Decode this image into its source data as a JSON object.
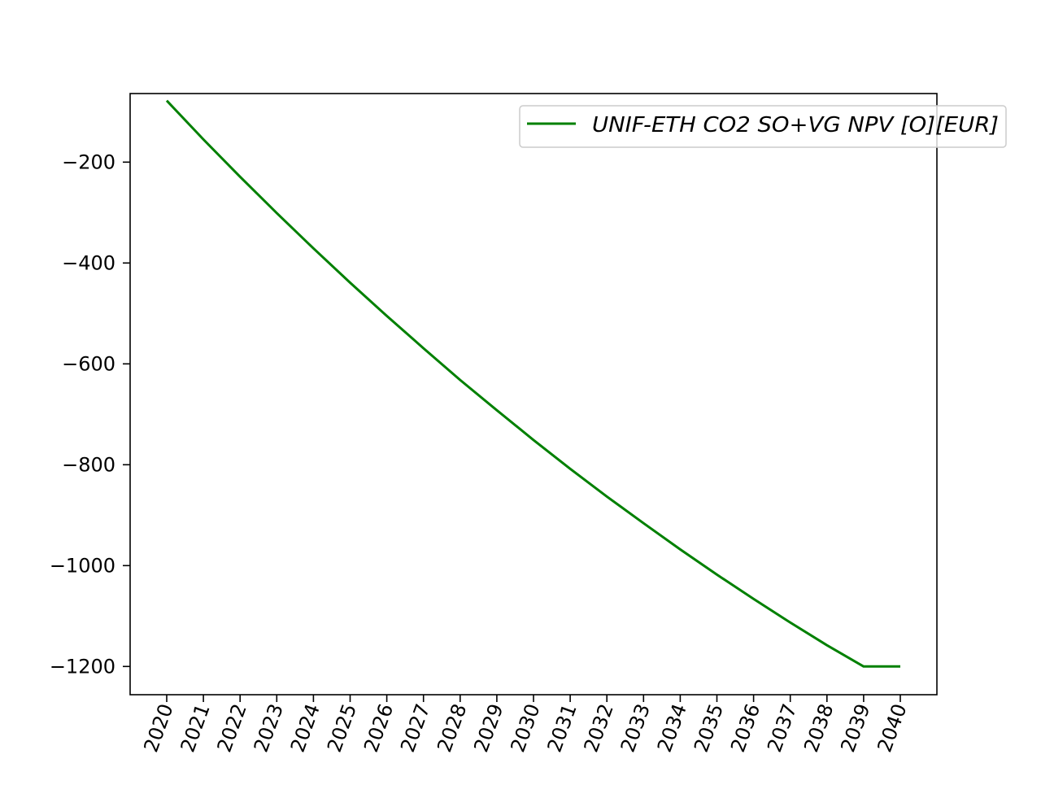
{
  "chart_data": {
    "type": "line",
    "title": "",
    "xlabel": "",
    "ylabel": "",
    "x": [
      "2020",
      "2021",
      "2022",
      "2023",
      "2024",
      "2025",
      "2026",
      "2027",
      "2028",
      "2029",
      "2030",
      "2031",
      "2032",
      "2033",
      "2034",
      "2035",
      "2036",
      "2037",
      "2038",
      "2039",
      "2040"
    ],
    "yticks": [
      -200,
      -400,
      -600,
      -800,
      -1000,
      -1200
    ],
    "ytick_labels": [
      "−200",
      "−400",
      "−600",
      "−800",
      "−1000",
      "−1200"
    ],
    "ylim": [
      -1256,
      -64
    ],
    "series": [
      {
        "name": "UNIF-ETH CO2 SO+VG NPV [O][EUR]",
        "color": "#008000",
        "values": [
          -78,
          -155,
          -229,
          -301,
          -371,
          -439,
          -505,
          -569,
          -632,
          -692,
          -751,
          -808,
          -863,
          -916,
          -968,
          -1018,
          -1066,
          -1113,
          -1158,
          -1200,
          -1200
        ]
      }
    ],
    "grid": false,
    "legend_position": "top-right",
    "x_tick_rotation": 70
  }
}
